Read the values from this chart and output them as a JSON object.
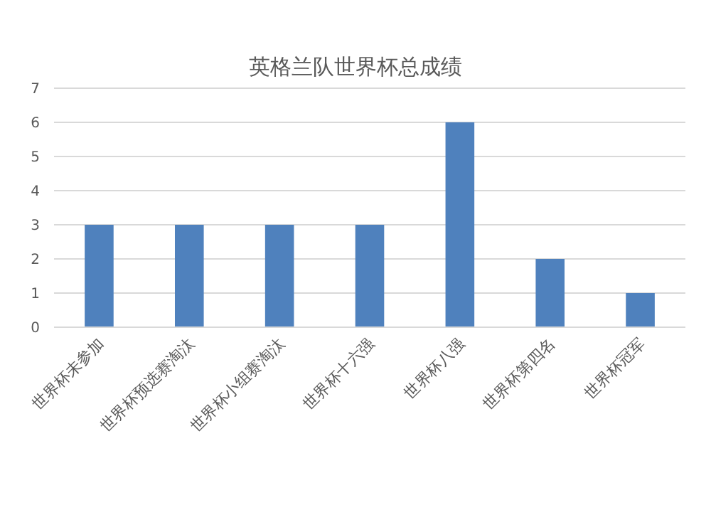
{
  "chart_data": {
    "type": "bar",
    "title": "英格兰队世界杯总成绩",
    "categories": [
      "世界杯未参加",
      "世界杯预选赛淘汰",
      "世界杯小组赛淘汰",
      "世界杯十六强",
      "世界杯八强",
      "世界杯第四名",
      "世界杯冠军"
    ],
    "values": [
      3,
      3,
      3,
      3,
      6,
      2,
      1
    ],
    "color": "#4f81bd",
    "ylim": [
      0,
      7
    ],
    "yticks": [
      0,
      1,
      2,
      3,
      4,
      5,
      6,
      7
    ],
    "grid": "y"
  }
}
